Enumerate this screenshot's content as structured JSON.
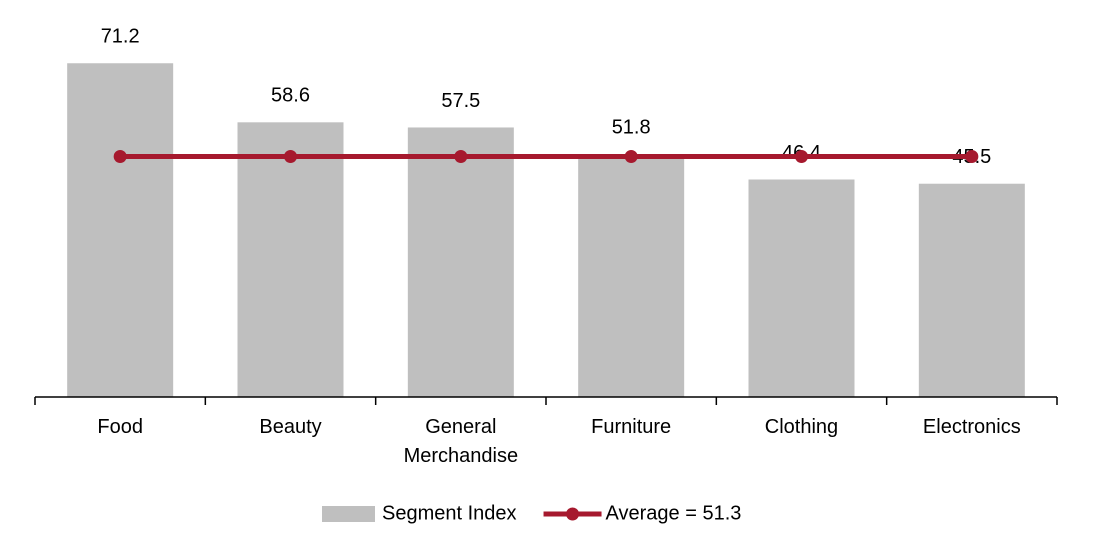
{
  "chart_data": {
    "type": "bar",
    "categories": [
      "Food",
      "Beauty",
      "General Merchandise",
      "Furniture",
      "Clothing",
      "Electronics"
    ],
    "series": [
      {
        "name": "Segment Index",
        "color": "#bfbfbf",
        "values": [
          71.2,
          58.6,
          57.5,
          51.8,
          46.4,
          45.5
        ],
        "data_labels": true
      },
      {
        "name": "Average = 51.3",
        "color": "#a6192e",
        "type": "line",
        "values": [
          51.3,
          51.3,
          51.3,
          51.3,
          51.3,
          51.3
        ]
      }
    ],
    "ylim": [
      0,
      80
    ],
    "legend": "bottom"
  }
}
